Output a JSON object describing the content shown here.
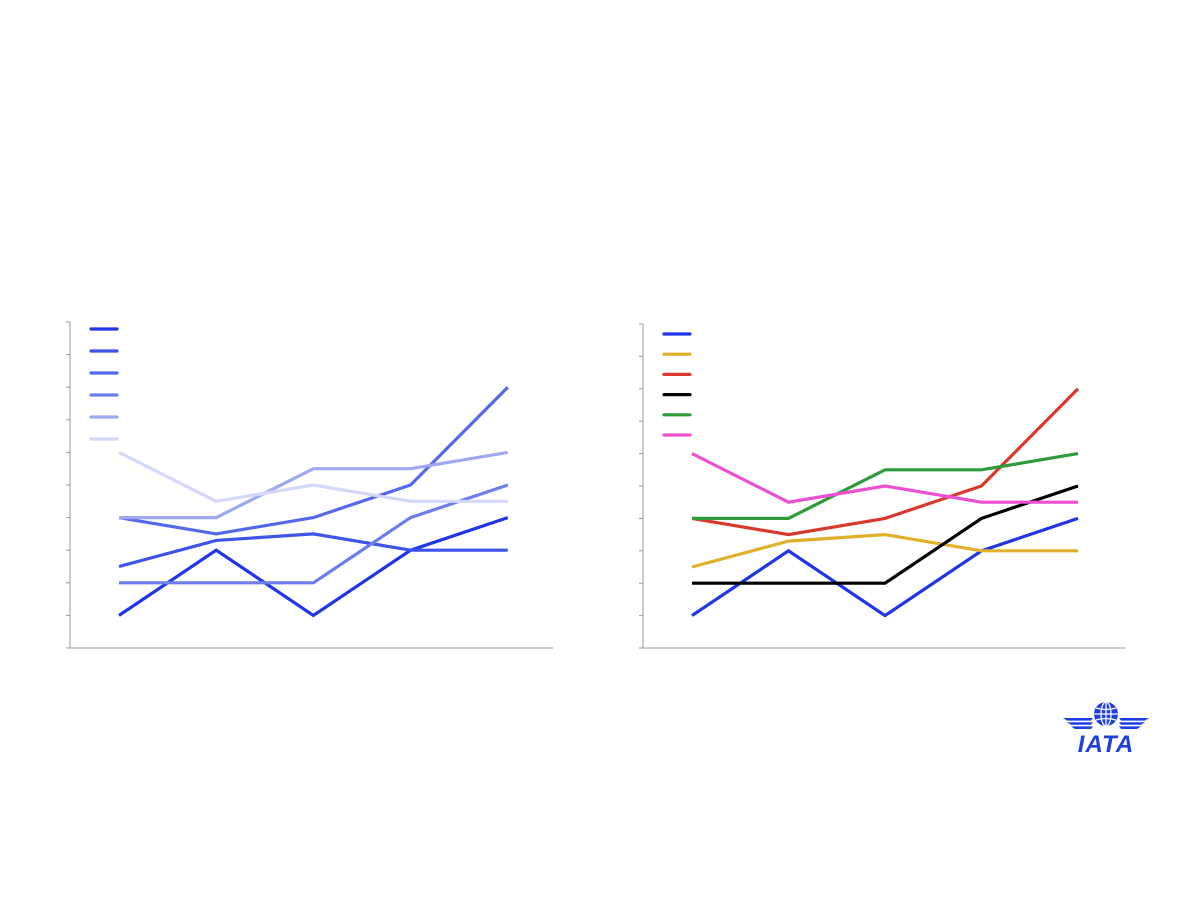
{
  "logo": {
    "text": "IATA",
    "color": "#1f3ee0"
  },
  "chart_data": [
    {
      "type": "line",
      "title": "",
      "xlabel": "",
      "ylabel": "",
      "x": [
        1,
        2,
        3,
        4,
        5
      ],
      "ylim": [
        0,
        10
      ],
      "y_ticks": [
        0,
        1,
        2,
        3,
        4,
        5,
        6,
        7,
        8,
        9,
        10
      ],
      "legend_position": "top-left",
      "grid": false,
      "series": [
        {
          "color": "#1f35e6",
          "values": [
            1,
            3,
            1,
            3,
            4
          ]
        },
        {
          "color": "#3d54e8",
          "values": [
            2.5,
            3.3,
            3.5,
            3,
            3
          ]
        },
        {
          "color": "#5368ea",
          "values": [
            4,
            3.5,
            4,
            5,
            8
          ]
        },
        {
          "color": "#6c7eec",
          "values": [
            2,
            2,
            2,
            4,
            5
          ]
        },
        {
          "color": "#9ea9f2",
          "values": [
            4,
            4,
            5.5,
            5.5,
            6
          ]
        },
        {
          "color": "#d3d8f9",
          "values": [
            6,
            4.5,
            5,
            4.5,
            4.5
          ]
        }
      ]
    },
    {
      "type": "line",
      "title": "",
      "xlabel": "",
      "ylabel": "",
      "x": [
        1,
        2,
        3,
        4,
        5
      ],
      "ylim": [
        0,
        10
      ],
      "y_ticks": [
        0,
        1,
        2,
        3,
        4,
        5,
        6,
        7,
        8,
        9,
        10
      ],
      "legend_position": "top-left",
      "grid": false,
      "series": [
        {
          "color": "#1f35e6",
          "values": [
            1,
            3,
            1,
            3,
            4
          ]
        },
        {
          "color": "#e0b02c",
          "values": [
            2.5,
            3.3,
            3.5,
            3,
            3
          ]
        },
        {
          "color": "#d8392b",
          "values": [
            4,
            3.5,
            4,
            5,
            8
          ]
        },
        {
          "color": "#000000",
          "values": [
            2,
            2,
            2,
            4,
            5
          ]
        },
        {
          "color": "#2e9a3a",
          "values": [
            4,
            4,
            5.5,
            5.5,
            6
          ]
        },
        {
          "color": "#ee4fd0",
          "values": [
            6,
            4.5,
            5,
            4.5,
            4.5
          ]
        }
      ]
    }
  ]
}
